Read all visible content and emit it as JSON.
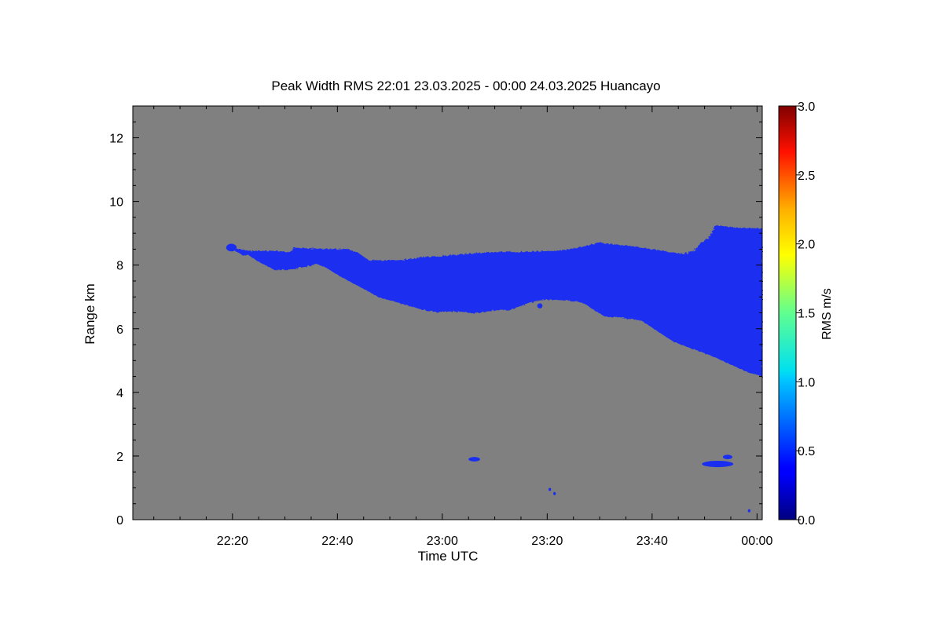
{
  "chart_data": {
    "type": "heatmap",
    "title": "Peak Width RMS   22:01 23.03.2025 - 00:00 24.03.2025 Huancayo",
    "xlabel": "Time UTC",
    "ylabel": "Range km",
    "x_tick_labels": [
      "22:20",
      "22:40",
      "23:00",
      "23:20",
      "23:40",
      "00:00"
    ],
    "x_tick_minutes": [
      20,
      40,
      60,
      80,
      100,
      120
    ],
    "xlim_minutes": [
      1,
      121
    ],
    "y_tick_labels": [
      "0",
      "2",
      "4",
      "6",
      "8",
      "10",
      "12"
    ],
    "y_tick_values": [
      0,
      2,
      4,
      6,
      8,
      10,
      12
    ],
    "ylim": [
      0,
      13
    ],
    "background_color": "#808080",
    "colorbar": {
      "label": "RMS m/s",
      "range": [
        0,
        3
      ],
      "tick_labels": [
        "0.0",
        "0.5",
        "1.0",
        "1.5",
        "2.0",
        "2.5",
        "3.0"
      ],
      "tick_values": [
        0,
        0.5,
        1.0,
        1.5,
        2.0,
        2.5,
        3.0
      ],
      "colormap": "jet"
    },
    "regions": [
      {
        "name": "main-echo-layer",
        "color": "#1a2ef0",
        "top_boundary": [
          [
            19.5,
            8.7
          ],
          [
            20.5,
            8.5
          ],
          [
            22.0,
            8.5
          ],
          [
            23.0,
            8.45
          ],
          [
            28,
            8.45
          ],
          [
            31,
            8.4
          ],
          [
            31.5,
            8.52
          ],
          [
            32,
            8.55
          ],
          [
            35,
            8.52
          ],
          [
            42,
            8.5
          ],
          [
            44,
            8.38
          ],
          [
            46,
            8.15
          ],
          [
            52,
            8.15
          ],
          [
            56,
            8.25
          ],
          [
            60,
            8.28
          ],
          [
            64,
            8.35
          ],
          [
            70,
            8.42
          ],
          [
            76,
            8.42
          ],
          [
            82,
            8.45
          ],
          [
            86,
            8.55
          ],
          [
            90,
            8.7
          ],
          [
            96,
            8.6
          ],
          [
            102,
            8.45
          ],
          [
            106,
            8.35
          ],
          [
            108,
            8.45
          ],
          [
            109,
            8.65
          ],
          [
            111,
            8.9
          ],
          [
            112,
            9.25
          ],
          [
            116,
            9.18
          ],
          [
            121,
            9.15
          ]
        ],
        "bottom_boundary": [
          [
            121,
            4.5
          ],
          [
            118,
            4.65
          ],
          [
            112,
            5.1
          ],
          [
            104,
            5.6
          ],
          [
            98,
            6.25
          ],
          [
            94,
            6.35
          ],
          [
            91,
            6.38
          ],
          [
            89,
            6.58
          ],
          [
            87,
            6.8
          ],
          [
            85,
            6.88
          ],
          [
            80,
            6.92
          ],
          [
            78,
            6.88
          ],
          [
            75,
            6.72
          ],
          [
            73,
            6.6
          ],
          [
            70,
            6.58
          ],
          [
            66,
            6.48
          ],
          [
            62,
            6.55
          ],
          [
            59,
            6.52
          ],
          [
            56,
            6.6
          ],
          [
            52,
            6.8
          ],
          [
            48,
            6.98
          ],
          [
            45,
            7.25
          ],
          [
            41,
            7.6
          ],
          [
            38,
            7.9
          ],
          [
            36,
            8.05
          ],
          [
            34,
            7.95
          ],
          [
            31,
            7.85
          ],
          [
            28,
            7.85
          ],
          [
            25,
            8.1
          ],
          [
            23,
            8.32
          ],
          [
            22,
            8.3
          ],
          [
            20.5,
            8.45
          ]
        ]
      }
    ],
    "blobs": [
      {
        "x": 19.8,
        "y": 8.55,
        "rx": 1.0,
        "ry": 0.12
      },
      {
        "x": 78.6,
        "y": 6.72,
        "rx": 0.5,
        "ry": 0.08
      },
      {
        "x": 66.1,
        "y": 1.9,
        "rx": 1.1,
        "ry": 0.07
      },
      {
        "x": 112.5,
        "y": 1.75,
        "rx": 3.0,
        "ry": 0.1
      },
      {
        "x": 114.4,
        "y": 1.97,
        "rx": 0.9,
        "ry": 0.07
      },
      {
        "x": 80.5,
        "y": 0.95,
        "rx": 0.25,
        "ry": 0.05
      },
      {
        "x": 81.4,
        "y": 0.82,
        "rx": 0.25,
        "ry": 0.05
      },
      {
        "x": 118.5,
        "y": 0.28,
        "rx": 0.25,
        "ry": 0.05
      }
    ]
  }
}
